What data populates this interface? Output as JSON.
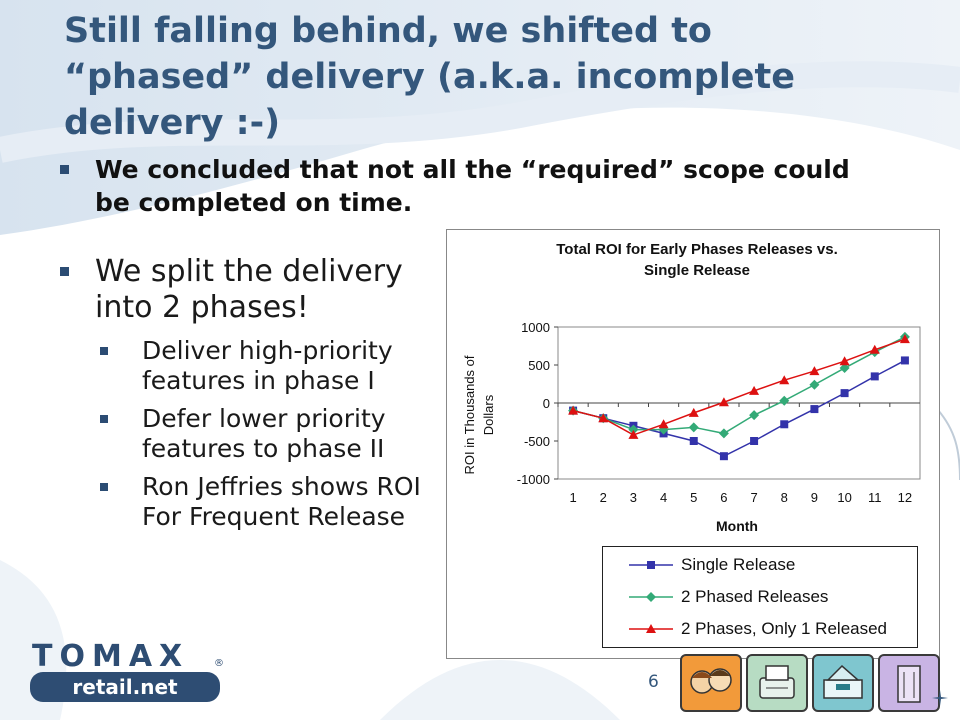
{
  "slide": {
    "title": "Still falling behind, we shifted to “phased” delivery (a.k.a. incomplete delivery :-)",
    "subtitle": "We concluded that not all the “required” scope could be completed on time.",
    "bullet": "We split the delivery into 2 phases!",
    "sub_bullets": [
      "Deliver high-priority features in phase I",
      "Defer lower priority features to phase II",
      "Ron Jeffries shows ROI For Frequent Release"
    ],
    "page_number": "6"
  },
  "logo": {
    "top": "TOMAX",
    "bottom": "retail.net",
    "mark": "®"
  },
  "icons": [
    "people-icon",
    "fax-machine-icon",
    "cash-register-icon",
    "building-icon"
  ],
  "colors": {
    "title": "#34577c",
    "bullet": "#2b4c73",
    "single": "#3333aa",
    "phased": "#33aa77",
    "only1": "#dd1111"
  },
  "chart_data": {
    "type": "line",
    "title": "Total ROI for Early Phases Releases vs. Single Release",
    "title_lines": [
      "Total ROI for Early Phases Releases vs.",
      "Single Release"
    ],
    "xlabel": "Month",
    "ylabel": "ROI in Thousands of Dollars",
    "ylabel_lines": [
      "ROI in Thousands of",
      "Dollars"
    ],
    "x": [
      1,
      2,
      3,
      4,
      5,
      6,
      7,
      8,
      9,
      10,
      11,
      12
    ],
    "ylim": [
      -1000,
      1000
    ],
    "yticks": [
      -1000,
      -500,
      0,
      500,
      1000
    ],
    "legend_position": "bottom",
    "series": [
      {
        "name": "Single Release",
        "marker": "square",
        "color": "#3333aa",
        "values": [
          -100,
          -200,
          -300,
          -400,
          -500,
          -700,
          -500,
          -280,
          -80,
          130,
          350,
          560
        ]
      },
      {
        "name": "2 Phased Releases",
        "marker": "diamond",
        "color": "#33aa77",
        "values": [
          -100,
          -200,
          -350,
          -350,
          -320,
          -400,
          -160,
          30,
          240,
          460,
          670,
          870
        ]
      },
      {
        "name": "2 Phases, Only 1 Released",
        "marker": "triangle",
        "color": "#dd1111",
        "values": [
          -100,
          -200,
          -420,
          -280,
          -130,
          10,
          160,
          300,
          420,
          550,
          700,
          840
        ]
      }
    ]
  }
}
